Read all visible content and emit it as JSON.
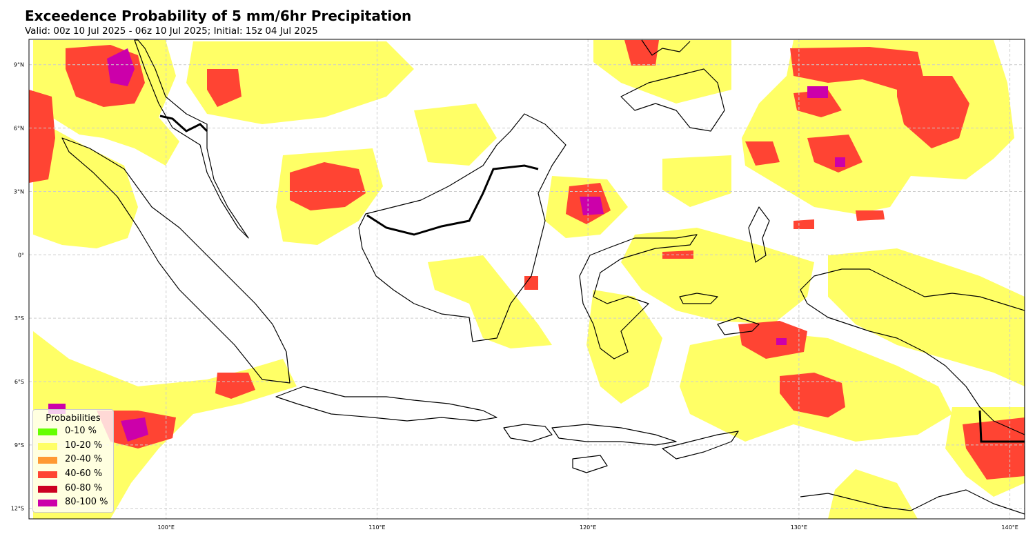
{
  "title": "Exceedence Probability of 5 mm/6hr Precipitation",
  "subtitle": "Valid: 00z 10 Jul 2025 - 06z 10 Jul 2025; Initial: 15z 04 Jul 2025",
  "map": {
    "extent": {
      "lon_min": 93.5,
      "lon_max": 140.7,
      "lat_min": -12.5,
      "lat_max": 10.2
    },
    "grid": true,
    "lat_ticks": [
      {
        "value": 9,
        "label": "9°N"
      },
      {
        "value": 6,
        "label": "6°N"
      },
      {
        "value": 3,
        "label": "3°N"
      },
      {
        "value": 0,
        "label": "0°"
      },
      {
        "value": -3,
        "label": "3°S"
      },
      {
        "value": -6,
        "label": "6°S"
      },
      {
        "value": -9,
        "label": "9°S"
      },
      {
        "value": -12,
        "label": "12°S"
      }
    ],
    "lon_ticks": [
      {
        "value": 100,
        "label": "100°E"
      },
      {
        "value": 110,
        "label": "110°E"
      },
      {
        "value": 120,
        "label": "120°E"
      },
      {
        "value": 130,
        "label": "130°E"
      },
      {
        "value": 140,
        "label": "140°E"
      }
    ]
  },
  "legend": {
    "title": "Probabilities",
    "items": [
      {
        "label": "0-10 %",
        "color": "#66ff00"
      },
      {
        "label": "10-20 %",
        "color": "#ffff66"
      },
      {
        "label": "20-40 %",
        "color": "#ff9933"
      },
      {
        "label": "40-60 %",
        "color": "#ff4433"
      },
      {
        "label": "60-80 %",
        "color": "#cc0022"
      },
      {
        "label": "80-100 %",
        "color": "#cc00aa"
      }
    ]
  },
  "colors": {
    "land_outline": "#000000",
    "grid": "#cccccc",
    "frame": "#000000"
  }
}
